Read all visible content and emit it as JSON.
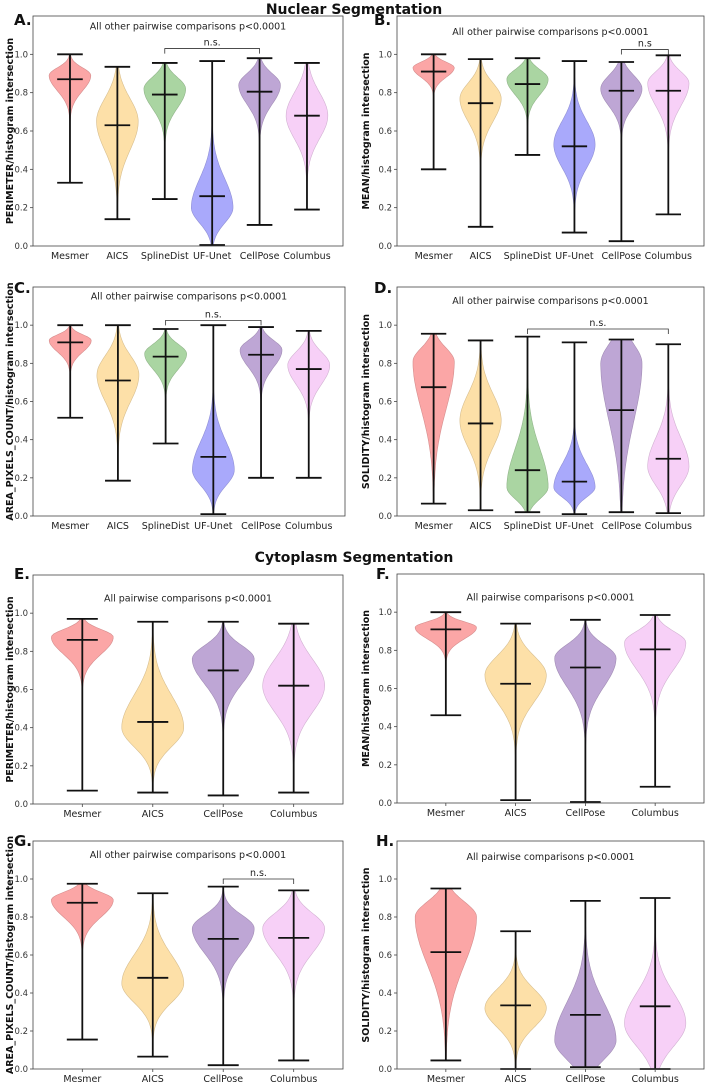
{
  "titles": {
    "nuclear": "Nuclear Segmentation",
    "cytoplasm": "Cytoplasm Segmentation"
  },
  "colors": {
    "Mesmer": "#fba6a6",
    "AICS": "#fde0a8",
    "SplineDist": "#aad5a2",
    "UF-Unet": "#a9a9fb",
    "CellPose": "#bea6d5",
    "Columbus": "#f7d0f7",
    "line": "#111111"
  },
  "chart_data": [
    {
      "id": "A",
      "type": "violin",
      "label": "A.",
      "ylabel": "PERIMETER/histogram intersection",
      "ylim": [
        0,
        1.2
      ],
      "yticks": [
        "0.0",
        "0.2",
        "0.4",
        "0.6",
        "0.8",
        "1.0"
      ],
      "annotation": "All other pairwise comparisons p<0.0001",
      "bracket": {
        "from": "SplineDist",
        "to": "CellPose",
        "text": "n.s."
      },
      "categories": [
        "Mesmer",
        "AICS",
        "SplineDist",
        "UF-Unet",
        "CellPose",
        "Columbus"
      ],
      "violins": [
        {
          "min": 0.33,
          "max": 1.0,
          "median": 0.87,
          "mode": 0.89,
          "spread_up": 0.04,
          "spread_down": 0.08
        },
        {
          "min": 0.14,
          "max": 0.935,
          "median": 0.63,
          "mode": 0.65,
          "spread_up": 0.12,
          "spread_down": 0.15
        },
        {
          "min": 0.245,
          "max": 0.955,
          "median": 0.79,
          "mode": 0.82,
          "spread_up": 0.06,
          "spread_down": 0.1
        },
        {
          "min": 0.005,
          "max": 0.965,
          "median": 0.26,
          "mode": 0.2,
          "spread_up": 0.15,
          "spread_down": 0.08
        },
        {
          "min": 0.11,
          "max": 0.98,
          "median": 0.805,
          "mode": 0.84,
          "spread_up": 0.06,
          "spread_down": 0.1
        },
        {
          "min": 0.19,
          "max": 0.955,
          "median": 0.68,
          "mode": 0.68,
          "spread_up": 0.12,
          "spread_down": 0.12
        }
      ]
    },
    {
      "id": "B",
      "type": "violin",
      "label": "B.",
      "ylabel": "MEAN/histogram intersection",
      "ylim": [
        0,
        1.2
      ],
      "yticks": [
        "0.0",
        "0.2",
        "0.4",
        "0.6",
        "0.8",
        "1.0"
      ],
      "annotation": "All other pairwise comparisons p<0.0001",
      "bracket": {
        "from": "CellPose",
        "to": "Columbus",
        "text": "n.s"
      },
      "categories": [
        "Mesmer",
        "AICS",
        "SplineDist",
        "UF-Unet",
        "CellPose",
        "Columbus"
      ],
      "violins": [
        {
          "min": 0.4,
          "max": 1.0,
          "median": 0.91,
          "mode": 0.93,
          "spread_up": 0.03,
          "spread_down": 0.05
        },
        {
          "min": 0.1,
          "max": 0.975,
          "median": 0.745,
          "mode": 0.77,
          "spread_up": 0.08,
          "spread_down": 0.12
        },
        {
          "min": 0.475,
          "max": 0.98,
          "median": 0.845,
          "mode": 0.87,
          "spread_up": 0.05,
          "spread_down": 0.08
        },
        {
          "min": 0.07,
          "max": 0.965,
          "median": 0.52,
          "mode": 0.53,
          "spread_up": 0.12,
          "spread_down": 0.12
        },
        {
          "min": 0.025,
          "max": 0.96,
          "median": 0.81,
          "mode": 0.82,
          "spread_up": 0.07,
          "spread_down": 0.09
        },
        {
          "min": 0.165,
          "max": 0.995,
          "median": 0.81,
          "mode": 0.85,
          "spread_up": 0.06,
          "spread_down": 0.12
        }
      ]
    },
    {
      "id": "C",
      "type": "violin",
      "label": "C.",
      "ylabel": "AREA_PIXELS_COUNT/histogram intersection",
      "ylim": [
        0,
        1.2
      ],
      "yticks": [
        "0.0",
        "0.2",
        "0.4",
        "0.6",
        "0.8",
        "1.0"
      ],
      "annotation": "All other pairwise comparisons p<0.0001",
      "bracket": {
        "from": "SplineDist",
        "to": "CellPose",
        "text": "n.s."
      },
      "categories": [
        "Mesmer",
        "AICS",
        "SplineDist",
        "UF-Unet",
        "CellPose",
        "Columbus"
      ],
      "violins": [
        {
          "min": 0.515,
          "max": 1.0,
          "median": 0.91,
          "mode": 0.92,
          "spread_up": 0.03,
          "spread_down": 0.06
        },
        {
          "min": 0.185,
          "max": 1.0,
          "median": 0.71,
          "mode": 0.74,
          "spread_up": 0.1,
          "spread_down": 0.14
        },
        {
          "min": 0.38,
          "max": 0.98,
          "median": 0.835,
          "mode": 0.85,
          "spread_up": 0.05,
          "spread_down": 0.08
        },
        {
          "min": 0.01,
          "max": 1.0,
          "median": 0.31,
          "mode": 0.24,
          "spread_up": 0.15,
          "spread_down": 0.08
        },
        {
          "min": 0.2,
          "max": 0.99,
          "median": 0.845,
          "mode": 0.87,
          "spread_up": 0.05,
          "spread_down": 0.09
        },
        {
          "min": 0.2,
          "max": 0.97,
          "median": 0.77,
          "mode": 0.79,
          "spread_up": 0.07,
          "spread_down": 0.1
        }
      ]
    },
    {
      "id": "D",
      "type": "violin",
      "label": "D.",
      "ylabel": "SOLIDITY/histogram intersection",
      "ylim": [
        0,
        1.2
      ],
      "yticks": [
        "0.0",
        "0.2",
        "0.4",
        "0.6",
        "0.8",
        "1.0"
      ],
      "annotation": "All other pairwise comparisons p<0.0001",
      "bracket": {
        "from": "SplineDist",
        "to": "Columbus",
        "text": "n.s."
      },
      "categories": [
        "Mesmer",
        "AICS",
        "SplineDist",
        "UF-Unet",
        "CellPose",
        "Columbus"
      ],
      "violins": [
        {
          "min": 0.065,
          "max": 0.955,
          "median": 0.675,
          "mode": 0.81,
          "spread_up": 0.07,
          "spread_down": 0.25
        },
        {
          "min": 0.03,
          "max": 0.92,
          "median": 0.485,
          "mode": 0.5,
          "spread_up": 0.14,
          "spread_down": 0.14
        },
        {
          "min": 0.02,
          "max": 0.94,
          "median": 0.24,
          "mode": 0.15,
          "spread_up": 0.2,
          "spread_down": 0.06
        },
        {
          "min": 0.01,
          "max": 0.91,
          "median": 0.18,
          "mode": 0.15,
          "spread_up": 0.12,
          "spread_down": 0.05
        },
        {
          "min": 0.02,
          "max": 0.925,
          "median": 0.555,
          "mode": 0.8,
          "spread_up": 0.1,
          "spread_down": 0.3
        },
        {
          "min": 0.015,
          "max": 0.9,
          "median": 0.3,
          "mode": 0.26,
          "spread_up": 0.15,
          "spread_down": 0.1
        }
      ]
    },
    {
      "id": "E",
      "type": "violin",
      "label": "E.",
      "ylabel": "PERIMETER/histogram intersection",
      "ylim": [
        0,
        1.2
      ],
      "yticks": [
        "0.0",
        "0.2",
        "0.4",
        "0.6",
        "0.8",
        "1.0"
      ],
      "annotation": "All pairwise comparisons p<0.0001",
      "categories": [
        "Mesmer",
        "AICS",
        "CellPose",
        "Columbus"
      ],
      "violins": [
        {
          "min": 0.07,
          "max": 0.97,
          "median": 0.86,
          "mode": 0.875,
          "spread_up": 0.04,
          "spread_down": 0.09
        },
        {
          "min": 0.06,
          "max": 0.955,
          "median": 0.43,
          "mode": 0.4,
          "spread_up": 0.17,
          "spread_down": 0.1
        },
        {
          "min": 0.045,
          "max": 0.955,
          "median": 0.7,
          "mode": 0.76,
          "spread_up": 0.07,
          "spread_down": 0.13
        },
        {
          "min": 0.06,
          "max": 0.945,
          "median": 0.62,
          "mode": 0.62,
          "spread_up": 0.14,
          "spread_down": 0.14
        }
      ]
    },
    {
      "id": "F",
      "type": "violin",
      "label": "F.",
      "ylabel": "MEAN/histogram intersection",
      "ylim": [
        0,
        1.2
      ],
      "yticks": [
        "0.0",
        "0.2",
        "0.4",
        "0.6",
        "0.8",
        "1.0"
      ],
      "annotation": "All pairwise comparisons p<0.0001",
      "categories": [
        "Mesmer",
        "AICS",
        "CellPose",
        "Columbus"
      ],
      "violins": [
        {
          "min": 0.46,
          "max": 1.0,
          "median": 0.91,
          "mode": 0.92,
          "spread_up": 0.03,
          "spread_down": 0.06
        },
        {
          "min": 0.015,
          "max": 0.94,
          "median": 0.625,
          "mode": 0.67,
          "spread_up": 0.1,
          "spread_down": 0.14
        },
        {
          "min": 0.005,
          "max": 0.96,
          "median": 0.71,
          "mode": 0.76,
          "spread_up": 0.07,
          "spread_down": 0.15
        },
        {
          "min": 0.085,
          "max": 0.985,
          "median": 0.805,
          "mode": 0.84,
          "spread_up": 0.06,
          "spread_down": 0.14
        }
      ]
    },
    {
      "id": "G",
      "type": "violin",
      "label": "G.",
      "ylabel": "AREA_PIXELS_COUNT/histogram intersection",
      "ylim": [
        0,
        1.2
      ],
      "yticks": [
        "0.0",
        "0.2",
        "0.4",
        "0.6",
        "0.8",
        "1.0"
      ],
      "annotation": "All other pairwise comparisons p<0.0001",
      "bracket": {
        "from": "CellPose",
        "to": "Columbus",
        "text": "n.s."
      },
      "categories": [
        "Mesmer",
        "AICS",
        "CellPose",
        "Columbus"
      ],
      "violins": [
        {
          "min": 0.155,
          "max": 0.975,
          "median": 0.875,
          "mode": 0.89,
          "spread_up": 0.04,
          "spread_down": 0.09
        },
        {
          "min": 0.065,
          "max": 0.925,
          "median": 0.48,
          "mode": 0.45,
          "spread_up": 0.15,
          "spread_down": 0.1
        },
        {
          "min": 0.02,
          "max": 0.96,
          "median": 0.685,
          "mode": 0.74,
          "spread_up": 0.07,
          "spread_down": 0.13
        },
        {
          "min": 0.045,
          "max": 0.94,
          "median": 0.69,
          "mode": 0.74,
          "spread_up": 0.08,
          "spread_down": 0.13
        }
      ]
    },
    {
      "id": "H",
      "type": "violin",
      "label": "H.",
      "ylabel": "SOLIDITY/histogram intersection",
      "ylim": [
        0,
        1.2
      ],
      "yticks": [
        "0.0",
        "0.2",
        "0.4",
        "0.6",
        "0.8",
        "1.0"
      ],
      "annotation": "All pairwise comparisons p<0.0001",
      "categories": [
        "Mesmer",
        "AICS",
        "CellPose",
        "Columbus"
      ],
      "violins": [
        {
          "min": 0.045,
          "max": 0.95,
          "median": 0.615,
          "mode": 0.8,
          "spread_up": 0.08,
          "spread_down": 0.25
        },
        {
          "min": 0.0,
          "max": 0.725,
          "median": 0.335,
          "mode": 0.32,
          "spread_up": 0.1,
          "spread_down": 0.1
        },
        {
          "min": 0.01,
          "max": 0.885,
          "median": 0.285,
          "mode": 0.15,
          "spread_up": 0.2,
          "spread_down": 0.1
        },
        {
          "min": 0.0,
          "max": 0.9,
          "median": 0.33,
          "mode": 0.24,
          "spread_up": 0.16,
          "spread_down": 0.12
        }
      ]
    }
  ]
}
